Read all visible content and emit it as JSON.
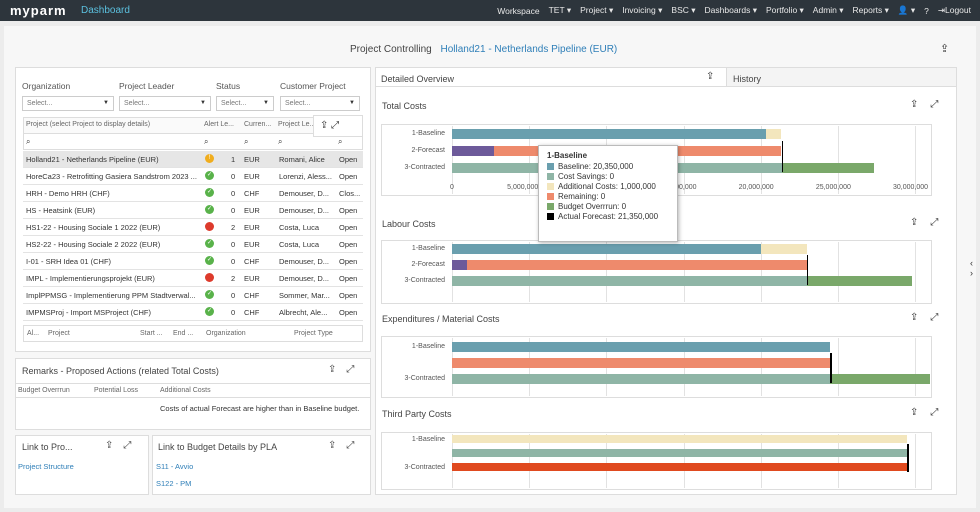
{
  "app": {
    "logo": "myparm",
    "section": "Dashboard"
  },
  "nav": [
    "Workspace",
    "TET ▾",
    "Project ▾",
    "Invoicing ▾",
    "BSC ▾",
    "Dashboards ▾",
    "Portfolio ▾",
    "Admin ▾",
    "Reports ▾",
    "👤 ▾",
    "?",
    "⇥Logout"
  ],
  "header": {
    "label": "Project Controlling",
    "project": "Holland21 - Netherlands Pipeline (EUR)"
  },
  "filters": {
    "labels": [
      "Organization",
      "Project Leader",
      "Status",
      "Customer Project"
    ],
    "placeholders": [
      "Select...",
      "Select...",
      "Select...",
      "Select..."
    ]
  },
  "project_table": {
    "headers": [
      "Project (select Project to display details)",
      "Alert Le...",
      "Curren...",
      "Project Le...",
      "Phase"
    ],
    "rows": [
      {
        "name": "Holland21 - Netherlands Pipeline (EUR)",
        "status": "warn",
        "alert": "1",
        "cur": "EUR",
        "leader": "Romani, Alice",
        "phase": "Open"
      },
      {
        "name": "HoreCa23 - Retrofitting Gasiera Sandstrom 2023 ...",
        "status": "ok",
        "alert": "0",
        "cur": "EUR",
        "leader": "Lorenzi, Aless...",
        "phase": "Open"
      },
      {
        "name": "HRH - Demo HRH (CHF)",
        "status": "ok",
        "alert": "0",
        "cur": "CHF",
        "leader": "Demouser, D...",
        "phase": "Clos..."
      },
      {
        "name": "HS - Heatsink (EUR)",
        "status": "ok",
        "alert": "0",
        "cur": "EUR",
        "leader": "Demouser, D...",
        "phase": "Open"
      },
      {
        "name": "HS1-22 - Housing Sociale 1 2022 (EUR)",
        "status": "bad",
        "alert": "2",
        "cur": "EUR",
        "leader": "Costa, Luca",
        "phase": "Open"
      },
      {
        "name": "HS2-22 - Housing Sociale 2 2022 (EUR)",
        "status": "ok",
        "alert": "0",
        "cur": "EUR",
        "leader": "Costa, Luca",
        "phase": "Open"
      },
      {
        "name": "I-01 - SRH Idea 01 (CHF)",
        "status": "ok",
        "alert": "0",
        "cur": "CHF",
        "leader": "Demouser, D...",
        "phase": "Open"
      },
      {
        "name": "IMPL - Implementierungsprojekt (EUR)",
        "status": "bad",
        "alert": "2",
        "cur": "EUR",
        "leader": "Demouser, D...",
        "phase": "Open"
      },
      {
        "name": "ImplPPMSG - Implementierung PPM Stadtverwal...",
        "status": "ok",
        "alert": "0",
        "cur": "CHF",
        "leader": "Sommer, Mar...",
        "phase": "Open"
      },
      {
        "name": "IMPMSProj - Import MSProject (CHF)",
        "status": "ok",
        "alert": "0",
        "cur": "CHF",
        "leader": "Albrecht, Ale...",
        "phase": "Open"
      }
    ],
    "sub_headers": [
      "Al...",
      "Project",
      "Start ...",
      "End ...",
      "Organization",
      "Project Type"
    ]
  },
  "remarks": {
    "title": "Remarks - Proposed Actions (related Total Costs)",
    "headers": [
      "Budget Overrrun",
      "Potential Loss",
      "Additional Costs"
    ],
    "text": "Costs of actual Forecast are higher than in Baseline budget."
  },
  "link_pro": {
    "title": "Link to Pro...",
    "items": [
      "Project Structure"
    ]
  },
  "link_budget": {
    "title": "Link to Budget Details by PLA",
    "items": [
      "S11 - Avvio",
      "S122 - PM"
    ]
  },
  "overview": {
    "tab_detailed": "Detailed Overview",
    "tab_history": "History"
  },
  "colors": {
    "baseline": "#6a9fae",
    "savings": "#8fb5a6",
    "additional": "#f3e6bd",
    "remaining": "#ee8a6c",
    "overrun": "#7aa86a",
    "contracted_red": "#e04a1f",
    "purple": "#6d5a9a",
    "forecast": "#000000"
  },
  "chart_data": [
    {
      "type": "bar",
      "title": "Total Costs",
      "categories": [
        "1-Baseline",
        "2-Forecast",
        "3-Contracted"
      ],
      "xlim": [
        0,
        30000000
      ],
      "xticks": [
        "0",
        "5,000,000",
        "10,000,000",
        "15,000,000",
        "20,000,000",
        "25,000,000",
        "30,000,000"
      ],
      "bars": [
        [
          {
            "c": "baseline",
            "v": 20350000
          },
          {
            "c": "additional",
            "v": 1000000
          }
        ],
        [
          {
            "c": "purple",
            "v": 2700000
          },
          {
            "c": "remaining",
            "v": 18650000
          }
        ],
        [
          {
            "c": "savings",
            "v": 21350000
          },
          {
            "c": "overrun",
            "v": 6000000
          }
        ]
      ],
      "forecast": 21350000
    },
    {
      "type": "bar",
      "title": "Labour Costs",
      "categories": [
        "1-Baseline",
        "2-Forecast",
        "3-Contracted"
      ],
      "xlim": [
        0,
        30000000
      ],
      "bars": [
        [
          {
            "c": "baseline",
            "v": 20000000
          },
          {
            "c": "additional",
            "v": 3000000
          }
        ],
        [
          {
            "c": "purple",
            "v": 1000000
          },
          {
            "c": "remaining",
            "v": 22000000
          }
        ],
        [
          {
            "c": "savings",
            "v": 23000000
          },
          {
            "c": "overrun",
            "v": 6800000
          }
        ]
      ],
      "forecast": 23000000
    },
    {
      "type": "bar",
      "title": "Expenditures / Material Costs",
      "categories": [
        "1-Baseline",
        "",
        "3-Contracted"
      ],
      "xlim": [
        0,
        30000000
      ],
      "bars": [
        [
          {
            "c": "baseline",
            "v": 24500000
          }
        ],
        [
          {
            "c": "remaining",
            "v": 24500000
          }
        ],
        [
          {
            "c": "savings",
            "v": 24500000
          },
          {
            "c": "overrun",
            "v": 6500000
          }
        ]
      ],
      "forecast": 24500000
    },
    {
      "type": "bar",
      "title": "Third Party Costs",
      "categories": [
        "1-Baseline",
        "",
        "3-Contracted"
      ],
      "xlim": [
        0,
        30000000
      ],
      "bars": [
        [
          {
            "c": "additional",
            "v": 29500000
          }
        ],
        [
          {
            "c": "savings",
            "v": 29500000
          }
        ],
        [
          {
            "c": "contracted_red",
            "v": 29500000
          }
        ]
      ],
      "forecast": 29500000
    }
  ],
  "tooltip": {
    "title": "1-Baseline",
    "items": [
      {
        "c": "baseline",
        "text": "Baseline: 20,350,000"
      },
      {
        "c": "savings",
        "text": "Cost Savings: 0"
      },
      {
        "c": "additional",
        "text": "Additional Costs: 1,000,000"
      },
      {
        "c": "remaining",
        "text": "Remaining: 0"
      },
      {
        "c": "overrun",
        "text": "Budget Overrrun: 0"
      },
      {
        "c": "forecast",
        "text": "Actual Forecast: 21,350,000"
      }
    ]
  }
}
